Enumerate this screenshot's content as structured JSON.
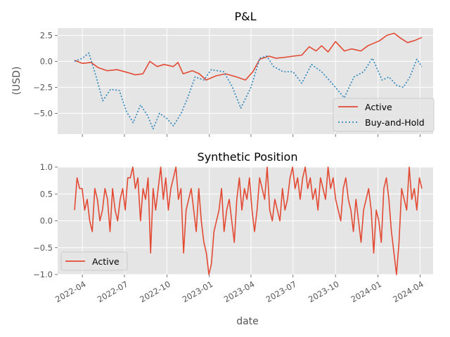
{
  "chart_data": [
    {
      "type": "line",
      "title": "P&L",
      "xlabel": "",
      "ylabel": "(USD)",
      "ylim": [
        -7.0,
        3.2
      ],
      "yticks": [
        2.5,
        0.0,
        -2.5,
        -5.0
      ],
      "ytick_labels": [
        "2.5",
        "0.0",
        "−2.5",
        "−5.0"
      ],
      "grid": true,
      "legend_position": "lower-right",
      "series": [
        {
          "name": "Active",
          "color": "#E24A33",
          "style": "solid",
          "points": [
            [
              "2022-03-15",
              0.1
            ],
            [
              "2022-04-01",
              -0.2
            ],
            [
              "2022-04-20",
              -0.1
            ],
            [
              "2022-05-05",
              -0.6
            ],
            [
              "2022-05-25",
              -0.9
            ],
            [
              "2022-06-15",
              -0.8
            ],
            [
              "2022-07-10",
              -1.1
            ],
            [
              "2022-07-25",
              -1.3
            ],
            [
              "2022-08-10",
              -1.2
            ],
            [
              "2022-08-25",
              0.0
            ],
            [
              "2022-09-10",
              -0.5
            ],
            [
              "2022-09-25",
              -0.3
            ],
            [
              "2022-10-15",
              -0.5
            ],
            [
              "2022-10-25",
              -0.1
            ],
            [
              "2022-11-05",
              -1.2
            ],
            [
              "2022-11-25",
              -0.9
            ],
            [
              "2022-12-10",
              -1.2
            ],
            [
              "2022-12-25",
              -1.8
            ],
            [
              "2023-01-15",
              -1.4
            ],
            [
              "2023-02-05",
              -1.2
            ],
            [
              "2023-03-01",
              -1.5
            ],
            [
              "2023-03-20",
              -1.8
            ],
            [
              "2023-04-05",
              -1.0
            ],
            [
              "2023-04-20",
              0.2
            ],
            [
              "2023-05-10",
              0.5
            ],
            [
              "2023-05-25",
              0.3
            ],
            [
              "2023-06-15",
              0.4
            ],
            [
              "2023-07-01",
              0.5
            ],
            [
              "2023-07-20",
              0.6
            ],
            [
              "2023-08-05",
              1.4
            ],
            [
              "2023-08-20",
              1.0
            ],
            [
              "2023-09-01",
              1.5
            ],
            [
              "2023-09-15",
              0.9
            ],
            [
              "2023-10-01",
              1.9
            ],
            [
              "2023-10-20",
              1.0
            ],
            [
              "2023-11-05",
              1.2
            ],
            [
              "2023-11-25",
              1.0
            ],
            [
              "2023-12-10",
              1.5
            ],
            [
              "2024-01-05",
              2.0
            ],
            [
              "2024-01-20",
              2.5
            ],
            [
              "2024-02-05",
              2.7
            ],
            [
              "2024-02-20",
              2.2
            ],
            [
              "2024-03-05",
              1.8
            ],
            [
              "2024-03-20",
              2.0
            ],
            [
              "2024-04-05",
              2.3
            ]
          ]
        },
        {
          "name": "Buy-and-Hold",
          "color": "#348ABD",
          "style": "dotted",
          "points": [
            [
              "2022-03-15",
              0.0
            ],
            [
              "2022-04-01",
              0.3
            ],
            [
              "2022-04-15",
              0.8
            ],
            [
              "2022-05-01",
              -1.5
            ],
            [
              "2022-05-15",
              -3.8
            ],
            [
              "2022-06-01",
              -2.7
            ],
            [
              "2022-06-20",
              -2.8
            ],
            [
              "2022-07-05",
              -4.8
            ],
            [
              "2022-07-20",
              -5.9
            ],
            [
              "2022-08-05",
              -4.2
            ],
            [
              "2022-08-20",
              -5.2
            ],
            [
              "2022-09-01",
              -6.5
            ],
            [
              "2022-09-15",
              -5.0
            ],
            [
              "2022-10-01",
              -5.5
            ],
            [
              "2022-10-15",
              -6.2
            ],
            [
              "2022-11-01",
              -5.0
            ],
            [
              "2022-11-15",
              -3.5
            ],
            [
              "2022-12-01",
              -1.5
            ],
            [
              "2022-12-20",
              -1.8
            ],
            [
              "2023-01-05",
              -0.8
            ],
            [
              "2023-02-01",
              -1.0
            ],
            [
              "2023-02-20",
              -2.5
            ],
            [
              "2023-03-10",
              -4.5
            ],
            [
              "2023-04-01",
              -2.5
            ],
            [
              "2023-04-20",
              0.3
            ],
            [
              "2023-05-05",
              0.5
            ],
            [
              "2023-05-20",
              -0.5
            ],
            [
              "2023-06-10",
              -1.0
            ],
            [
              "2023-07-01",
              -1.0
            ],
            [
              "2023-07-20",
              -2.1
            ],
            [
              "2023-08-10",
              -0.3
            ],
            [
              "2023-09-01",
              -1.0
            ],
            [
              "2023-09-25",
              -2.2
            ],
            [
              "2023-10-20",
              -3.5
            ],
            [
              "2023-11-10",
              -1.5
            ],
            [
              "2023-12-01",
              -1.0
            ],
            [
              "2023-12-20",
              0.3
            ],
            [
              "2024-01-10",
              -1.8
            ],
            [
              "2024-01-25",
              -1.5
            ],
            [
              "2024-02-10",
              -2.3
            ],
            [
              "2024-02-25",
              -2.5
            ],
            [
              "2024-03-10",
              -1.5
            ],
            [
              "2024-03-25",
              0.2
            ],
            [
              "2024-04-05",
              -0.5
            ]
          ]
        }
      ]
    },
    {
      "type": "line",
      "title": "Synthetic Position",
      "xlabel": "date",
      "ylabel": "",
      "ylim": [
        -1.0,
        1.0
      ],
      "yticks": [
        1.0,
        0.5,
        0.0,
        -0.5,
        -1.0
      ],
      "ytick_labels": [
        "1.0",
        "0.5",
        "0.0",
        "−0.5",
        "−1.0"
      ],
      "grid": true,
      "legend_position": "lower-left",
      "x_range": [
        "2022-03-15",
        "2024-04-05"
      ],
      "xticks": [
        "2022-04-01",
        "2022-07-01",
        "2022-10-01",
        "2023-01-01",
        "2023-04-01",
        "2023-07-01",
        "2023-10-01",
        "2024-01-01",
        "2024-04-01"
      ],
      "xtick_labels": [
        "2022-04",
        "2022-07",
        "2022-10",
        "2023-01",
        "2023-04",
        "2023-07",
        "2023-10",
        "2024-01",
        "2024-04"
      ],
      "series": [
        {
          "name": "Active",
          "color": "#E24A33",
          "style": "solid",
          "values": [
            0.2,
            0.8,
            0.6,
            0.6,
            0.2,
            0.4,
            0.0,
            -0.2,
            0.6,
            0.4,
            0.0,
            0.2,
            0.6,
            0.4,
            -0.2,
            0.6,
            0.2,
            0.0,
            0.4,
            0.6,
            0.2,
            0.8,
            0.8,
            1.0,
            0.6,
            0.8,
            0.0,
            0.6,
            0.4,
            0.8,
            -0.6,
            0.6,
            0.2,
            0.6,
            1.0,
            0.4,
            0.8,
            0.2,
            0.6,
            0.8,
            1.0,
            0.4,
            0.6,
            -0.6,
            0.2,
            0.4,
            0.6,
            0.2,
            -0.2,
            0.6,
            0.0,
            -0.4,
            -0.6,
            -1.0,
            -0.8,
            -0.2,
            0.0,
            0.2,
            0.6,
            -0.2,
            0.2,
            0.4,
            0.0,
            -0.4,
            0.4,
            0.8,
            0.2,
            0.6,
            0.4,
            0.8,
            0.2,
            -0.2,
            0.2,
            0.8,
            0.6,
            0.4,
            1.0,
            0.2,
            0.0,
            0.4,
            0.2,
            0.0,
            0.6,
            0.2,
            0.4,
            0.8,
            1.0,
            0.6,
            0.8,
            0.4,
            0.8,
            1.0,
            0.6,
            0.8,
            0.4,
            0.6,
            0.2,
            0.8,
            0.6,
            0.4,
            1.0,
            0.6,
            0.8,
            0.4,
            0.2,
            0.0,
            0.6,
            0.8,
            0.4,
            0.2,
            -0.2,
            0.4,
            0.0,
            -0.4,
            0.2,
            0.4,
            0.6,
            0.2,
            -0.6,
            0.2,
            0.0,
            -0.4,
            0.6,
            0.8,
            0.4,
            -0.2,
            -0.6,
            -1.0,
            -0.4,
            0.6,
            0.4,
            0.2,
            1.0,
            0.4,
            0.6,
            0.2,
            0.8,
            0.6
          ]
        }
      ]
    }
  ]
}
